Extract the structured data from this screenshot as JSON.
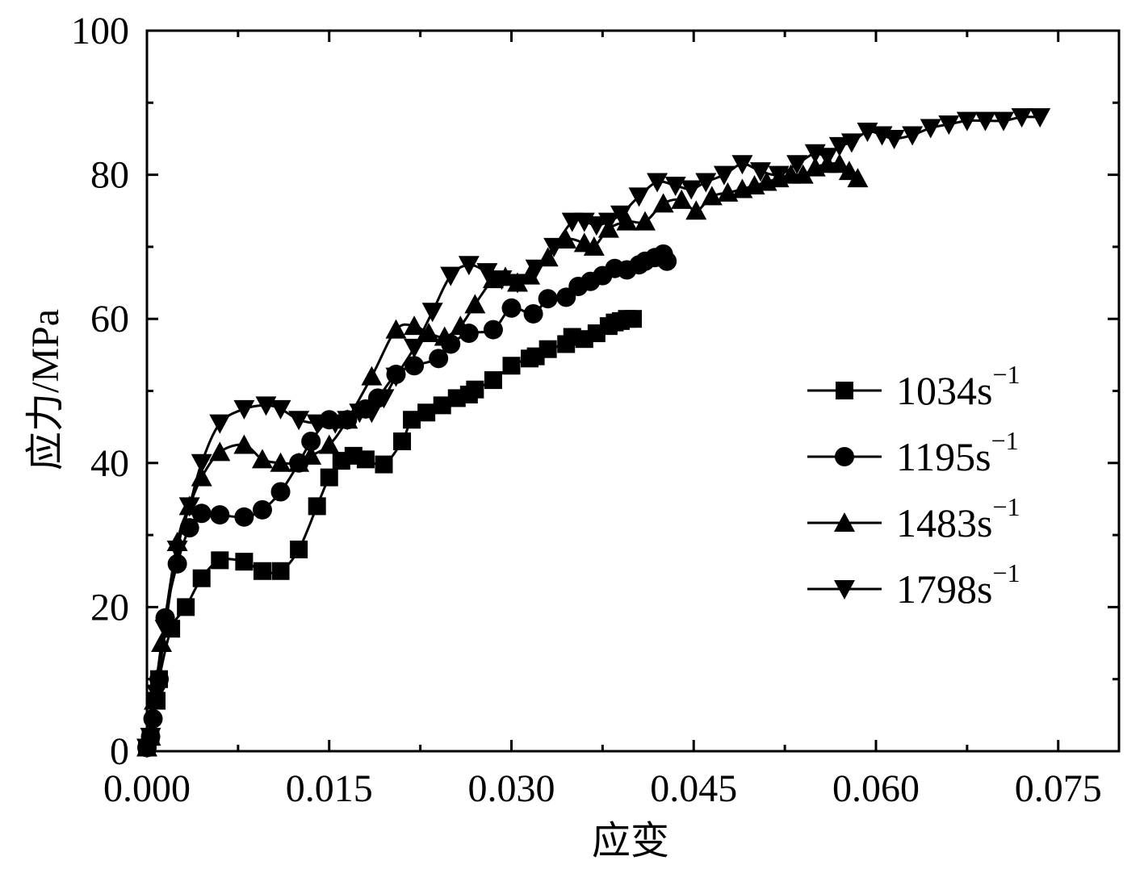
{
  "chart_data": {
    "type": "line",
    "title": "",
    "xlabel": "应变",
    "ylabel": "应力/MPa",
    "xlim": [
      0,
      0.08
    ],
    "ylim": [
      0,
      100
    ],
    "x_ticks": [
      "0.000",
      "0.015",
      "0.030",
      "0.045",
      "0.060",
      "0.075"
    ],
    "y_ticks": [
      "0",
      "20",
      "40",
      "60",
      "80",
      "100"
    ],
    "grid": false,
    "legend_position": "right",
    "series": [
      {
        "name": "1034s",
        "exponent": "−1",
        "marker": "square",
        "points": [
          [
            0.0,
            0.5
          ],
          [
            0.0003,
            2
          ],
          [
            0.0008,
            7
          ],
          [
            0.001,
            10
          ],
          [
            0.002,
            17
          ],
          [
            0.0032,
            20
          ],
          [
            0.0045,
            24
          ],
          [
            0.006,
            26.5
          ],
          [
            0.008,
            26.3
          ],
          [
            0.0095,
            25
          ],
          [
            0.011,
            25
          ],
          [
            0.0125,
            28
          ],
          [
            0.014,
            34
          ],
          [
            0.015,
            38
          ],
          [
            0.016,
            40.3
          ],
          [
            0.017,
            41
          ],
          [
            0.018,
            40.5
          ],
          [
            0.0195,
            39.8
          ],
          [
            0.021,
            43
          ],
          [
            0.0218,
            46
          ],
          [
            0.023,
            47
          ],
          [
            0.0243,
            48
          ],
          [
            0.0255,
            49
          ],
          [
            0.0265,
            49.5
          ],
          [
            0.027,
            50.2
          ],
          [
            0.0285,
            51.5
          ],
          [
            0.03,
            53.5
          ],
          [
            0.0315,
            54.5
          ],
          [
            0.032,
            54.8
          ],
          [
            0.033,
            55.8
          ],
          [
            0.0345,
            56.5
          ],
          [
            0.035,
            57.5
          ],
          [
            0.036,
            57.2
          ],
          [
            0.037,
            58
          ],
          [
            0.038,
            59
          ],
          [
            0.0385,
            59.5
          ],
          [
            0.039,
            59.7
          ],
          [
            0.0395,
            60
          ],
          [
            0.04,
            60
          ]
        ]
      },
      {
        "name": "1195s",
        "exponent": "−1",
        "marker": "circle",
        "points": [
          [
            0.0,
            0.5
          ],
          [
            0.0003,
            2
          ],
          [
            0.0005,
            4.5
          ],
          [
            0.001,
            10
          ],
          [
            0.0015,
            18.5
          ],
          [
            0.0025,
            26
          ],
          [
            0.0035,
            31
          ],
          [
            0.0045,
            33
          ],
          [
            0.006,
            32.8
          ],
          [
            0.008,
            32.5
          ],
          [
            0.0095,
            33.5
          ],
          [
            0.011,
            36
          ],
          [
            0.0125,
            40
          ],
          [
            0.0135,
            43
          ],
          [
            0.015,
            46
          ],
          [
            0.0165,
            46
          ],
          [
            0.018,
            47.5
          ],
          [
            0.019,
            49
          ],
          [
            0.0205,
            52.3
          ],
          [
            0.022,
            53.5
          ],
          [
            0.024,
            54.5
          ],
          [
            0.025,
            56.5
          ],
          [
            0.0265,
            58
          ],
          [
            0.0285,
            58.5
          ],
          [
            0.03,
            61.5
          ],
          [
            0.0318,
            60.7
          ],
          [
            0.033,
            62.8
          ],
          [
            0.0345,
            63
          ],
          [
            0.0355,
            64.5
          ],
          [
            0.0365,
            65.2
          ],
          [
            0.0375,
            66
          ],
          [
            0.0385,
            67
          ],
          [
            0.0395,
            66.8
          ],
          [
            0.0405,
            67.5
          ],
          [
            0.041,
            68
          ],
          [
            0.0418,
            68.5
          ],
          [
            0.0425,
            69
          ],
          [
            0.0428,
            68
          ]
        ]
      },
      {
        "name": "1483s",
        "exponent": "−1",
        "marker": "triangle-up",
        "points": [
          [
            0.0,
            0.5
          ],
          [
            0.0003,
            2
          ],
          [
            0.0006,
            7
          ],
          [
            0.0012,
            15
          ],
          [
            0.0025,
            29
          ],
          [
            0.0035,
            34
          ],
          [
            0.0045,
            38
          ],
          [
            0.006,
            41.5
          ],
          [
            0.008,
            42.5
          ],
          [
            0.0095,
            40.5
          ],
          [
            0.011,
            40
          ],
          [
            0.0125,
            40
          ],
          [
            0.0135,
            41
          ],
          [
            0.015,
            42.5
          ],
          [
            0.0165,
            46
          ],
          [
            0.0185,
            52
          ],
          [
            0.0205,
            58.5
          ],
          [
            0.022,
            59
          ],
          [
            0.0232,
            58
          ],
          [
            0.0245,
            57.5
          ],
          [
            0.0258,
            59
          ],
          [
            0.027,
            62
          ],
          [
            0.0285,
            65.5
          ],
          [
            0.0295,
            65.8
          ],
          [
            0.0305,
            65
          ],
          [
            0.0315,
            66
          ],
          [
            0.033,
            68.5
          ],
          [
            0.0345,
            71
          ],
          [
            0.036,
            70.5
          ],
          [
            0.0368,
            70
          ],
          [
            0.038,
            72.5
          ],
          [
            0.0395,
            73.5
          ],
          [
            0.041,
            73.5
          ],
          [
            0.0425,
            76
          ],
          [
            0.044,
            76.5
          ],
          [
            0.0452,
            75
          ],
          [
            0.0465,
            77
          ],
          [
            0.0478,
            77.5
          ],
          [
            0.049,
            78
          ],
          [
            0.05,
            78.5
          ],
          [
            0.051,
            79
          ],
          [
            0.052,
            79.5
          ],
          [
            0.053,
            80
          ],
          [
            0.054,
            80
          ],
          [
            0.055,
            81
          ],
          [
            0.056,
            81.5
          ],
          [
            0.057,
            81.5
          ],
          [
            0.0578,
            80.5
          ],
          [
            0.0585,
            79.5
          ]
        ]
      },
      {
        "name": "1798s",
        "exponent": "−1",
        "marker": "triangle-down",
        "points": [
          [
            0.0,
            0.5
          ],
          [
            0.0003,
            2
          ],
          [
            0.0008,
            8
          ],
          [
            0.0015,
            17
          ],
          [
            0.0025,
            28
          ],
          [
            0.0035,
            34
          ],
          [
            0.0045,
            40
          ],
          [
            0.006,
            45.5
          ],
          [
            0.008,
            47.5
          ],
          [
            0.0098,
            48
          ],
          [
            0.011,
            47.5
          ],
          [
            0.0125,
            46
          ],
          [
            0.014,
            45.5
          ],
          [
            0.0155,
            45.5
          ],
          [
            0.0165,
            46
          ],
          [
            0.0175,
            47
          ],
          [
            0.0185,
            47
          ],
          [
            0.0195,
            49
          ],
          [
            0.0205,
            52
          ],
          [
            0.022,
            56
          ],
          [
            0.0235,
            61
          ],
          [
            0.025,
            66
          ],
          [
            0.0265,
            67.5
          ],
          [
            0.028,
            66.5
          ],
          [
            0.0292,
            65.5
          ],
          [
            0.0305,
            65
          ],
          [
            0.032,
            67
          ],
          [
            0.0335,
            70
          ],
          [
            0.035,
            73.5
          ],
          [
            0.036,
            73.5
          ],
          [
            0.037,
            73
          ],
          [
            0.038,
            73.5
          ],
          [
            0.039,
            74.5
          ],
          [
            0.0405,
            77
          ],
          [
            0.042,
            79
          ],
          [
            0.0435,
            78.5
          ],
          [
            0.0448,
            78
          ],
          [
            0.046,
            79
          ],
          [
            0.0475,
            80
          ],
          [
            0.049,
            81.5
          ],
          [
            0.0505,
            80.5
          ],
          [
            0.052,
            80
          ],
          [
            0.0535,
            81.5
          ],
          [
            0.055,
            83
          ],
          [
            0.056,
            82.5
          ],
          [
            0.057,
            84
          ],
          [
            0.058,
            84.5
          ],
          [
            0.0593,
            86
          ],
          [
            0.0605,
            85.5
          ],
          [
            0.0615,
            85
          ],
          [
            0.063,
            85.5
          ],
          [
            0.0645,
            86.5
          ],
          [
            0.066,
            87
          ],
          [
            0.0675,
            87.5
          ],
          [
            0.069,
            87.5
          ],
          [
            0.0705,
            87.5
          ],
          [
            0.072,
            88
          ],
          [
            0.0735,
            88
          ]
        ]
      }
    ]
  }
}
